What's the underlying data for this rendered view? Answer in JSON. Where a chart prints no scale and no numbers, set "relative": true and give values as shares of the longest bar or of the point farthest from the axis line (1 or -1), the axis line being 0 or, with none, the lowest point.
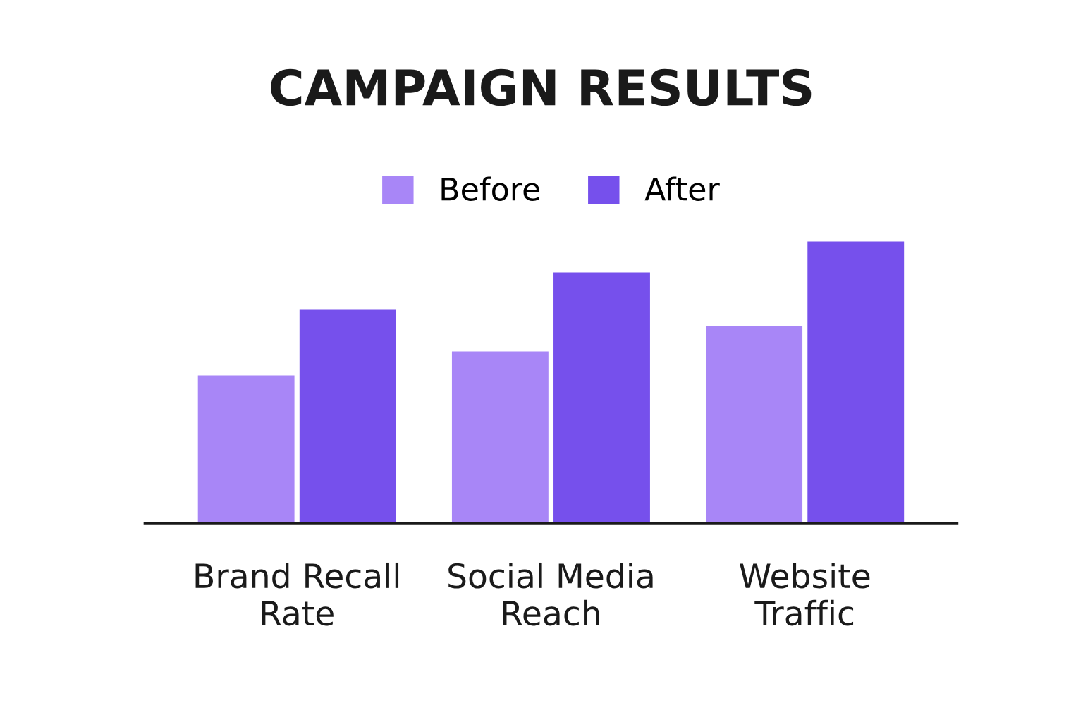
{
  "chart_data": {
    "type": "bar",
    "title": "CAMPAIGN RESULTS",
    "relative": true,
    "categories": [
      "Brand Recall\nRate",
      "Social Media\nReach",
      "Website\nTraffic"
    ],
    "series": [
      {
        "name": "Before",
        "color": "#a886f7",
        "values": [
          0.525,
          0.61,
          0.7
        ]
      },
      {
        "name": "After",
        "color": "#7650ec",
        "values": [
          0.76,
          0.89,
          1.0
        ]
      }
    ],
    "legend": "top",
    "grid": false
  }
}
